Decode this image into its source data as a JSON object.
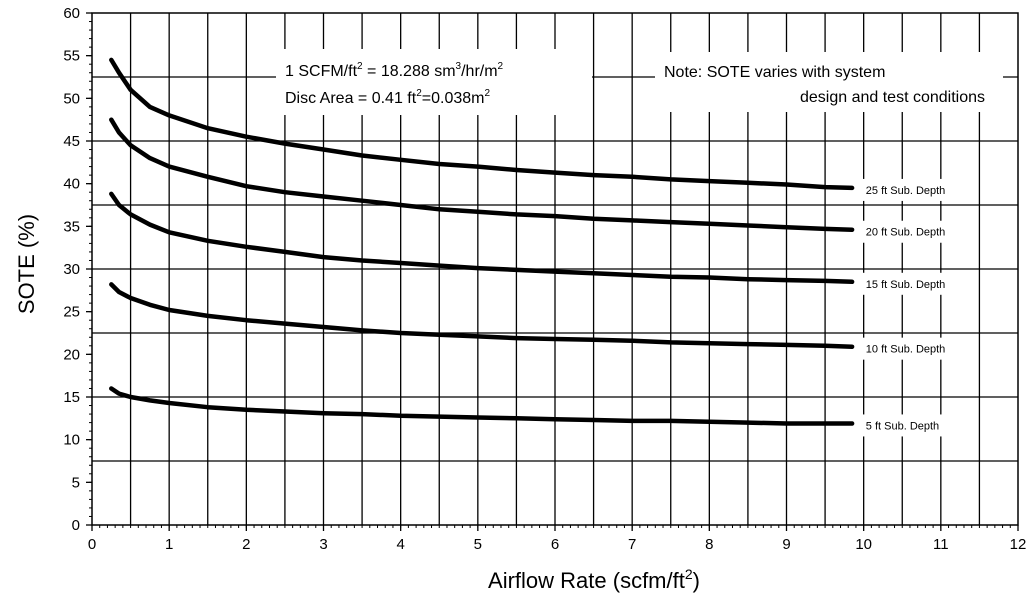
{
  "chart_data": {
    "type": "line",
    "xlabel": "Airflow Rate (scfm/ft",
    "xlabel_sup": "2",
    "xlabel_tail": ")",
    "ylabel": "SOTE (%)",
    "xlim": [
      0,
      12
    ],
    "ylim": [
      0,
      60
    ],
    "xticks": [
      0,
      1,
      2,
      3,
      4,
      5,
      6,
      7,
      8,
      9,
      10,
      11,
      12
    ],
    "yticks": [
      0,
      5,
      10,
      15,
      20,
      25,
      30,
      35,
      40,
      45,
      50,
      55,
      60
    ],
    "grid": true,
    "series": [
      {
        "name": "25 ft Sub. Depth",
        "x": [
          0.25,
          0.35,
          0.5,
          0.75,
          1,
          1.5,
          2,
          2.5,
          3,
          3.5,
          4,
          4.5,
          5,
          5.5,
          6,
          6.5,
          7,
          7.5,
          8,
          8.5,
          9,
          9.5,
          9.85
        ],
        "y": [
          54.5,
          53,
          51,
          49,
          48,
          46.5,
          45.5,
          44.7,
          44,
          43.3,
          42.8,
          42.3,
          42,
          41.6,
          41.3,
          41,
          40.8,
          40.5,
          40.3,
          40.1,
          39.9,
          39.6,
          39.5
        ]
      },
      {
        "name": "20 ft Sub. Depth",
        "x": [
          0.25,
          0.35,
          0.5,
          0.75,
          1,
          1.5,
          2,
          2.5,
          3,
          3.5,
          4,
          4.5,
          5,
          5.5,
          6,
          6.5,
          7,
          7.5,
          8,
          8.5,
          9,
          9.5,
          9.85
        ],
        "y": [
          47.5,
          46,
          44.5,
          43,
          42,
          40.8,
          39.7,
          39,
          38.5,
          38,
          37.5,
          37,
          36.7,
          36.4,
          36.2,
          35.9,
          35.7,
          35.5,
          35.3,
          35.1,
          34.9,
          34.7,
          34.6
        ]
      },
      {
        "name": "15 ft Sub. Depth",
        "x": [
          0.25,
          0.35,
          0.5,
          0.75,
          1,
          1.5,
          2,
          2.5,
          3,
          3.5,
          4,
          4.5,
          5,
          5.5,
          6,
          6.5,
          7,
          7.5,
          8,
          8.5,
          9,
          9.5,
          9.85
        ],
        "y": [
          38.8,
          37.5,
          36.4,
          35.2,
          34.3,
          33.3,
          32.6,
          32,
          31.4,
          31,
          30.7,
          30.4,
          30.1,
          29.9,
          29.7,
          29.5,
          29.3,
          29.1,
          29,
          28.8,
          28.7,
          28.6,
          28.5
        ]
      },
      {
        "name": "10 ft Sub. Depth",
        "x": [
          0.25,
          0.35,
          0.5,
          0.75,
          1,
          1.5,
          2,
          2.5,
          3,
          3.5,
          4,
          4.5,
          5,
          5.5,
          6,
          6.5,
          7,
          7.5,
          8,
          8.5,
          9,
          9.5,
          9.85
        ],
        "y": [
          28.2,
          27.3,
          26.6,
          25.8,
          25.2,
          24.5,
          24,
          23.6,
          23.2,
          22.8,
          22.5,
          22.3,
          22.1,
          21.9,
          21.8,
          21.7,
          21.6,
          21.4,
          21.3,
          21.2,
          21.1,
          21,
          20.9
        ]
      },
      {
        "name": "5 ft Sub. Depth",
        "x": [
          0.25,
          0.35,
          0.5,
          0.75,
          1,
          1.5,
          2,
          2.5,
          3,
          3.5,
          4,
          4.5,
          5,
          5.5,
          6,
          6.5,
          7,
          7.5,
          8,
          8.5,
          9,
          9.5,
          9.85
        ],
        "y": [
          16,
          15.4,
          15,
          14.6,
          14.3,
          13.8,
          13.5,
          13.3,
          13.1,
          13,
          12.8,
          12.7,
          12.6,
          12.5,
          12.4,
          12.3,
          12.2,
          12.2,
          12.1,
          12,
          11.9,
          11.9,
          11.9
        ]
      }
    ],
    "annotations": {
      "conv_prefix": "1 SCFM/ft",
      "conv_sup1": "2",
      "conv_mid": " = 18.288 sm",
      "conv_sup2": "3",
      "conv_tail": "/hr/m",
      "conv_sup3": "2",
      "disc_prefix": "Disc Area = 0.41 ft",
      "disc_sup1": "2",
      "disc_mid": "=0.038m",
      "disc_sup2": "2",
      "note_line1": "Note: SOTE varies with system",
      "note_line2": "design and test conditions"
    }
  }
}
